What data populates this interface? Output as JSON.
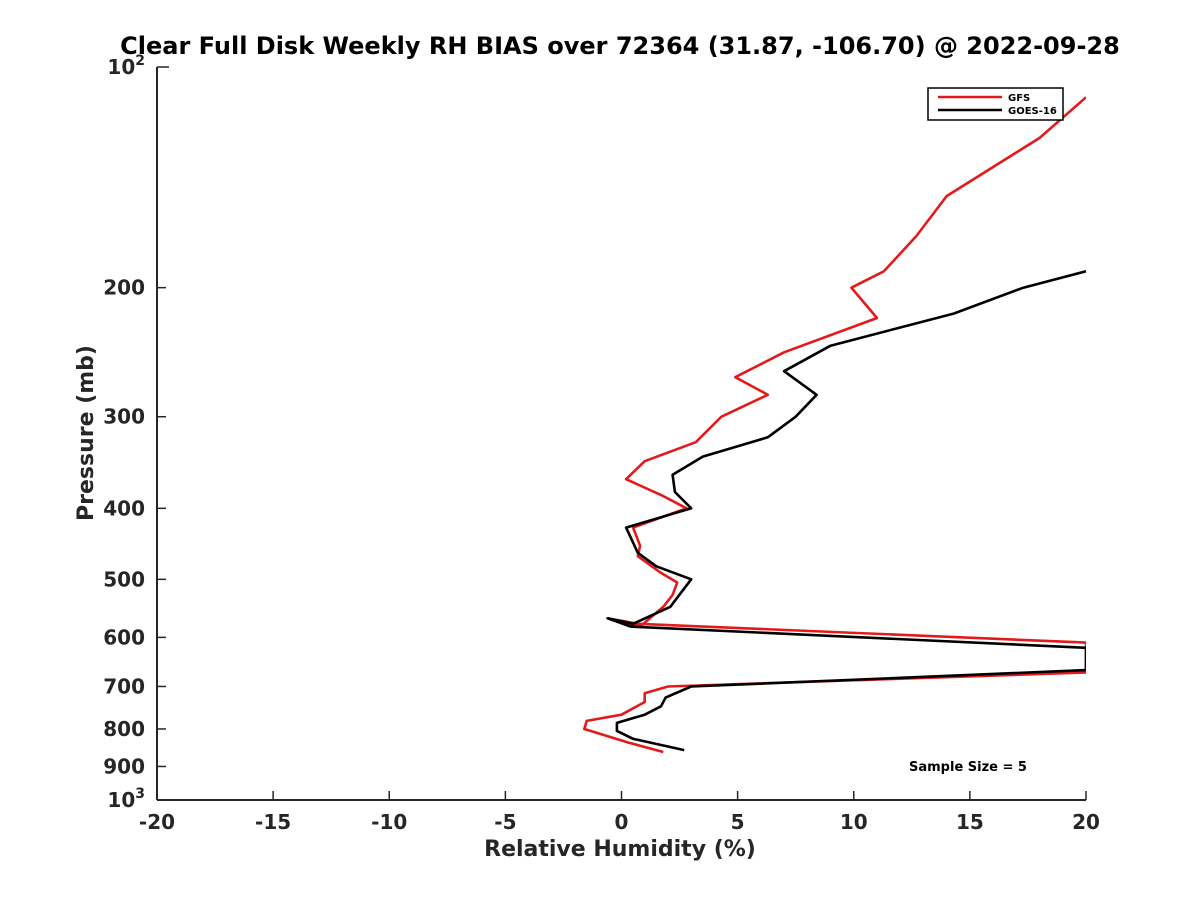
{
  "chart_data": {
    "type": "line",
    "title": "Clear Full Disk Weekly RH BIAS over 72364 (31.87, -106.70) @ 2022-09-28",
    "xlabel": "Relative Humidity (%)",
    "ylabel": "Pressure (mb)",
    "xlim": [
      -20,
      20
    ],
    "ylim": [
      100,
      1000
    ],
    "y_scale": "log",
    "y_reversed": true,
    "grid": false,
    "legend_position": "top-right",
    "x_ticks": [
      "-20",
      "-15",
      "-10",
      "-5",
      "0",
      "5",
      "10",
      "15",
      "20"
    ],
    "y_ticks": [
      {
        "value": 200,
        "label": "200"
      },
      {
        "value": 300,
        "label": "300"
      },
      {
        "value": 400,
        "label": "400"
      },
      {
        "value": 500,
        "label": "500"
      },
      {
        "value": 600,
        "label": "600"
      },
      {
        "value": 700,
        "label": "700"
      },
      {
        "value": 800,
        "label": "800"
      },
      {
        "value": 900,
        "label": "900"
      }
    ],
    "y_ticks_power": [
      {
        "value": 100,
        "base": "10",
        "exp": "2"
      },
      {
        "value": 1000,
        "base": "10",
        "exp": "3"
      }
    ],
    "series": [
      {
        "name": "GFS",
        "color": "#e31a1c",
        "points": [
          [
            20,
            110
          ],
          [
            18,
            125
          ],
          [
            14,
            150
          ],
          [
            12.7,
            170
          ],
          [
            11.3,
            190
          ],
          [
            9.9,
            200
          ],
          [
            11,
            220
          ],
          [
            7,
            245
          ],
          [
            4.9,
            265
          ],
          [
            6.3,
            280
          ],
          [
            4.3,
            300
          ],
          [
            3.2,
            325
          ],
          [
            1,
            345
          ],
          [
            0.2,
            365
          ],
          [
            1.8,
            385
          ],
          [
            2.8,
            400
          ],
          [
            0.5,
            425
          ],
          [
            0.8,
            450
          ],
          [
            0.7,
            465
          ],
          [
            1.7,
            490
          ],
          [
            2.4,
            505
          ],
          [
            2.2,
            525
          ],
          [
            1.8,
            545
          ],
          [
            0.8,
            580
          ],
          [
            -0.6,
            565
          ],
          [
            0.7,
            575
          ],
          [
            20,
            610
          ],
          [
            20,
            670
          ],
          [
            2,
            700
          ],
          [
            1,
            715
          ],
          [
            1,
            735
          ],
          [
            0,
            765
          ],
          [
            -1.5,
            780
          ],
          [
            -1.6,
            800
          ],
          [
            0.3,
            835
          ],
          [
            1.8,
            860
          ]
        ]
      },
      {
        "name": "GOES-16",
        "color": "#000000",
        "points": [
          [
            20,
            190
          ],
          [
            17.3,
            200
          ],
          [
            14.3,
            217
          ],
          [
            9,
            240
          ],
          [
            7,
            260
          ],
          [
            8.4,
            280
          ],
          [
            7.5,
            300
          ],
          [
            6.3,
            320
          ],
          [
            3.5,
            340
          ],
          [
            2.2,
            360
          ],
          [
            2.3,
            380
          ],
          [
            3,
            400
          ],
          [
            0.2,
            425
          ],
          [
            0.7,
            460
          ],
          [
            1.5,
            480
          ],
          [
            3,
            500
          ],
          [
            2.1,
            545
          ],
          [
            0.5,
            575
          ],
          [
            -0.6,
            565
          ],
          [
            0.4,
            580
          ],
          [
            20,
            620
          ],
          [
            20,
            665
          ],
          [
            3,
            700
          ],
          [
            1.9,
            725
          ],
          [
            1.7,
            745
          ],
          [
            1,
            765
          ],
          [
            -0.2,
            785
          ],
          [
            -0.2,
            805
          ],
          [
            0.5,
            825
          ],
          [
            2.7,
            855
          ]
        ]
      }
    ],
    "annotations": [
      {
        "text": "Sample Size = 5",
        "at": [
          14,
          890
        ]
      }
    ]
  }
}
